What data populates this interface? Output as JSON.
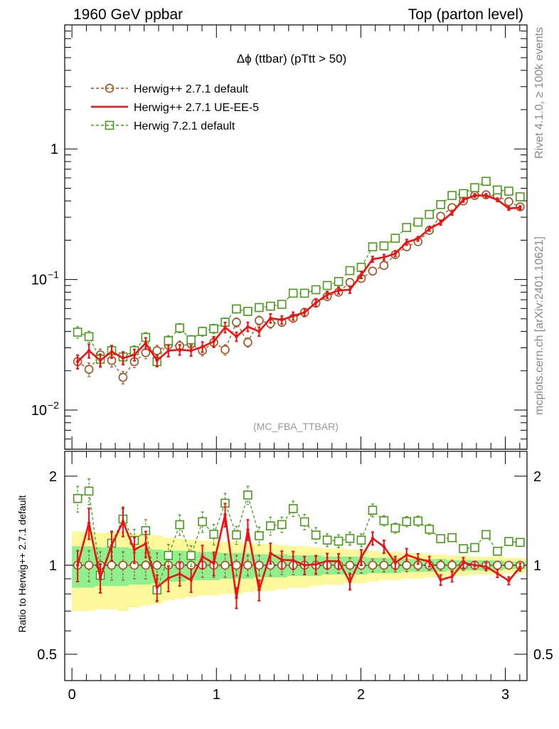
{
  "header": {
    "left": "1960 GeV ppbar",
    "right": "Top (parton level)"
  },
  "side": {
    "rivet": "Rivet 4.1.0, ≥ 100k events",
    "mcplots": "mcplots.cern.ch [arXiv:2401.10621]"
  },
  "chart_data": {
    "type": "line",
    "title": "Δϕ (ttbar) (pTtt > 50)",
    "analysis_label": "(MC_FBA_TTBAR)",
    "xlim": [
      -0.05,
      3.15
    ],
    "main_ylim_log10": [
      -2.3,
      0.95
    ],
    "main_yticks": [
      {
        "v": 0.01,
        "label": "10",
        "exp": "−2"
      },
      {
        "v": 0.1,
        "label": "10",
        "exp": "−1"
      },
      {
        "v": 1,
        "label": "1",
        "exp": ""
      }
    ],
    "ratio_ylabel": "Ratio to Herwig++ 2.7.1 default",
    "ratio_ylim_log10": [
      -0.39,
      0.385
    ],
    "ratio_yticks": [
      {
        "v": 0.5,
        "label": "0.5"
      },
      {
        "v": 1,
        "label": "1"
      },
      {
        "v": 2,
        "label": "2"
      }
    ],
    "xticks": [
      {
        "v": 0,
        "label": "0"
      },
      {
        "v": 1,
        "label": "1"
      },
      {
        "v": 2,
        "label": "2"
      },
      {
        "v": 3,
        "label": "3"
      }
    ],
    "x": [
      0.0393,
      0.1178,
      0.1963,
      0.2749,
      0.3534,
      0.432,
      0.5105,
      0.589,
      0.6676,
      0.7461,
      0.8247,
      0.9032,
      0.9817,
      1.0603,
      1.1388,
      1.2174,
      1.2959,
      1.3744,
      1.453,
      1.5315,
      1.6101,
      1.6886,
      1.7671,
      1.8457,
      1.9242,
      2.0028,
      2.0813,
      2.1598,
      2.2384,
      2.3169,
      2.3955,
      2.474,
      2.5525,
      2.6311,
      2.7096,
      2.7882,
      2.8667,
      2.9452,
      3.0238,
      3.1023
    ],
    "series": [
      {
        "name": "Herwig++ 2.7.1 default",
        "color": "#a0501e",
        "style": "circle-dashed",
        "values": [
          0.0235,
          0.0205,
          0.0265,
          0.024,
          0.0178,
          0.0235,
          0.0275,
          0.0285,
          0.0315,
          0.031,
          0.032,
          0.0285,
          0.033,
          0.029,
          0.047,
          0.033,
          0.0485,
          0.046,
          0.047,
          0.0505,
          0.056,
          0.066,
          0.074,
          0.08,
          0.095,
          0.102,
          0.116,
          0.128,
          0.155,
          0.178,
          0.195,
          0.238,
          0.305,
          0.355,
          0.4,
          0.44,
          0.445,
          0.435,
          0.395,
          0.36
        ]
      },
      {
        "name": "Herwig++ 2.7.1 UE-EE-5",
        "color": "#ee1111",
        "style": "solid",
        "values": [
          0.0235,
          0.0285,
          0.024,
          0.028,
          0.025,
          0.0265,
          0.0325,
          0.024,
          0.0285,
          0.029,
          0.0285,
          0.0305,
          0.0335,
          0.043,
          0.0365,
          0.0435,
          0.04,
          0.0505,
          0.049,
          0.0525,
          0.056,
          0.0665,
          0.0765,
          0.0825,
          0.0835,
          0.1085,
          0.143,
          0.148,
          0.158,
          0.193,
          0.205,
          0.245,
          0.272,
          0.325,
          0.408,
          0.44,
          0.44,
          0.408,
          0.35,
          0.355
        ]
      },
      {
        "name": "Herwig 7.2.1 default",
        "color": "#4a9a1a",
        "style": "square-dashed",
        "values": [
          0.0395,
          0.0365,
          0.0245,
          0.0285,
          0.0255,
          0.0285,
          0.036,
          0.0235,
          0.034,
          0.0425,
          0.0345,
          0.04,
          0.042,
          0.047,
          0.0595,
          0.057,
          0.061,
          0.0625,
          0.0645,
          0.0785,
          0.0785,
          0.0835,
          0.09,
          0.0965,
          0.117,
          0.124,
          0.178,
          0.181,
          0.207,
          0.25,
          0.275,
          0.315,
          0.375,
          0.44,
          0.455,
          0.505,
          0.565,
          0.485,
          0.475,
          0.43
        ]
      }
    ],
    "rel_errors": {
      "default": [
        0.12,
        0.12,
        0.11,
        0.11,
        0.11,
        0.1,
        0.1,
        0.1,
        0.1,
        0.09,
        0.09,
        0.09,
        0.09,
        0.09,
        0.08,
        0.08,
        0.08,
        0.08,
        0.07,
        0.07,
        0.07,
        0.07,
        0.06,
        0.06,
        0.06,
        0.06,
        0.05,
        0.05,
        0.05,
        0.05,
        0.04,
        0.04,
        0.04,
        0.04,
        0.04,
        0.03,
        0.03,
        0.03,
        0.03,
        0.03
      ],
      "ue": [
        0.12,
        0.12,
        0.11,
        0.11,
        0.11,
        0.1,
        0.1,
        0.1,
        0.1,
        0.09,
        0.09,
        0.09,
        0.09,
        0.09,
        0.08,
        0.08,
        0.08,
        0.08,
        0.07,
        0.07,
        0.07,
        0.07,
        0.06,
        0.06,
        0.06,
        0.06,
        0.05,
        0.05,
        0.05,
        0.05,
        0.04,
        0.04,
        0.04,
        0.04,
        0.04,
        0.03,
        0.03,
        0.03,
        0.03,
        0.03
      ],
      "h7": [
        0.1,
        0.1,
        0.1,
        0.1,
        0.1,
        0.09,
        0.09,
        0.09,
        0.09,
        0.08,
        0.08,
        0.08,
        0.08,
        0.08,
        0.07,
        0.07,
        0.07,
        0.07,
        0.06,
        0.06,
        0.06,
        0.06,
        0.05,
        0.05,
        0.05,
        0.05,
        0.05,
        0.04,
        0.04,
        0.04,
        0.04,
        0.04,
        0.03,
        0.03,
        0.03,
        0.03,
        0.03,
        0.03,
        0.03,
        0.03
      ]
    },
    "ratio_band": {
      "yellow_half": [
        0.3,
        0.3,
        0.29,
        0.29,
        0.3,
        0.28,
        0.27,
        0.26,
        0.24,
        0.23,
        0.22,
        0.21,
        0.21,
        0.2,
        0.2,
        0.19,
        0.18,
        0.18,
        0.17,
        0.16,
        0.16,
        0.15,
        0.14,
        0.14,
        0.13,
        0.13,
        0.12,
        0.11,
        0.11,
        0.1,
        0.1,
        0.09,
        0.09,
        0.08,
        0.08,
        0.07,
        0.07,
        0.07,
        0.06,
        0.06
      ],
      "green_half": [
        0.16,
        0.16,
        0.15,
        0.15,
        0.15,
        0.14,
        0.14,
        0.13,
        0.12,
        0.12,
        0.11,
        0.11,
        0.11,
        0.1,
        0.1,
        0.1,
        0.09,
        0.09,
        0.09,
        0.08,
        0.08,
        0.08,
        0.07,
        0.07,
        0.07,
        0.07,
        0.06,
        0.06,
        0.06,
        0.05,
        0.05,
        0.05,
        0.05,
        0.04,
        0.04,
        0.04,
        0.04,
        0.04,
        0.03,
        0.03
      ]
    }
  }
}
